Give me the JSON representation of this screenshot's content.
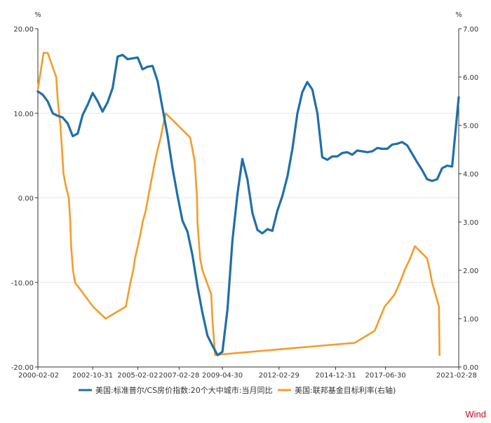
{
  "chart_data": {
    "type": "line",
    "title": "",
    "left_unit": "%",
    "right_unit": "%",
    "ylim_left": [
      -20,
      20
    ],
    "ylim_right": [
      0,
      7
    ],
    "yticks_left": [
      "20.00",
      "10.00",
      "0.00",
      "-10.00",
      "-20.00"
    ],
    "yticks_right": [
      "7.00",
      "6.00",
      "5.00",
      "4.00",
      "3.00",
      "2.00",
      "1.00",
      "0.00"
    ],
    "xlim": [
      "2000-02-02",
      "2021-02-28"
    ],
    "xticks": [
      "2000-02-02",
      "2002-10-31",
      "2005-02-02",
      "2007-02-28",
      "2009-04-30",
      "2012-02-29",
      "2014-12-31",
      "2017-06-30",
      "2021-02-28"
    ],
    "grid": true,
    "legend_position": "bottom",
    "brand": "Wind",
    "series": [
      {
        "name": "美国:标准普尔/CS房价指数:20个大中城市:当月同比",
        "axis": "left",
        "color": "#1f6fa8",
        "x": [
          "2000-01-31",
          "2000-04-30",
          "2000-07-31",
          "2000-10-31",
          "2001-01-31",
          "2001-04-30",
          "2001-07-31",
          "2001-10-31",
          "2002-01-31",
          "2002-04-30",
          "2002-07-31",
          "2002-10-31",
          "2003-01-31",
          "2003-04-30",
          "2003-07-31",
          "2003-10-31",
          "2004-01-31",
          "2004-04-30",
          "2004-07-31",
          "2004-10-31",
          "2005-01-31",
          "2005-04-30",
          "2005-07-31",
          "2005-10-31",
          "2006-01-31",
          "2006-04-30",
          "2006-07-31",
          "2006-10-31",
          "2007-01-31",
          "2007-04-30",
          "2007-07-31",
          "2007-10-31",
          "2008-01-31",
          "2008-04-30",
          "2008-07-31",
          "2008-10-31",
          "2009-01-31",
          "2009-04-30",
          "2009-07-31",
          "2009-10-31",
          "2010-01-31",
          "2010-04-30",
          "2010-07-31",
          "2010-10-31",
          "2011-01-31",
          "2011-04-30",
          "2011-07-31",
          "2011-10-31",
          "2012-01-31",
          "2012-04-30",
          "2012-07-31",
          "2012-10-31",
          "2013-01-31",
          "2013-04-30",
          "2013-07-31",
          "2013-10-31",
          "2014-01-31",
          "2014-04-30",
          "2014-07-31",
          "2014-10-31",
          "2015-01-31",
          "2015-04-30",
          "2015-07-31",
          "2015-10-31",
          "2016-01-31",
          "2016-04-30",
          "2016-07-31",
          "2016-10-31",
          "2017-01-31",
          "2017-04-30",
          "2017-07-31",
          "2017-10-31",
          "2018-01-31",
          "2018-04-30",
          "2018-07-31",
          "2018-10-31",
          "2019-01-31",
          "2019-04-30",
          "2019-07-31",
          "2019-10-31",
          "2020-01-31",
          "2020-04-30",
          "2020-07-31",
          "2020-10-31",
          "2021-01-31",
          "2021-02-28"
        ],
        "values": [
          12.6,
          12.2,
          11.4,
          10.0,
          9.7,
          9.5,
          8.8,
          7.3,
          7.6,
          9.8,
          11.0,
          12.4,
          11.4,
          10.2,
          11.3,
          13.0,
          16.7,
          16.9,
          16.4,
          16.5,
          16.6,
          15.2,
          15.5,
          15.6,
          13.8,
          10.6,
          7.4,
          3.5,
          0.2,
          -2.7,
          -4.0,
          -6.8,
          -10.5,
          -13.6,
          -16.3,
          -17.5,
          -18.6,
          -18.2,
          -13.2,
          -5.0,
          0.5,
          4.6,
          2.2,
          -1.8,
          -3.8,
          -4.2,
          -3.7,
          -3.9,
          -1.5,
          0.2,
          2.5,
          5.8,
          10.0,
          12.5,
          13.7,
          12.8,
          10.0,
          4.8,
          4.5,
          4.9,
          4.9,
          5.3,
          5.4,
          5.1,
          5.6,
          5.5,
          5.4,
          5.5,
          5.9,
          5.8,
          5.8,
          6.3,
          6.4,
          6.6,
          6.2,
          5.2,
          4.2,
          3.3,
          2.2,
          2.0,
          2.2,
          3.5,
          3.8,
          3.7,
          10.0,
          11.9
        ]
      },
      {
        "name": "美国:联邦基金目标利率(右轴)",
        "axis": "right",
        "color": "#f39c2b",
        "x": [
          "2000-02-02",
          "2000-05-16",
          "2000-07-31",
          "2001-01-03",
          "2001-01-31",
          "2001-03-20",
          "2001-04-18",
          "2001-05-15",
          "2001-06-27",
          "2001-08-21",
          "2001-09-17",
          "2001-10-02",
          "2001-11-06",
          "2001-12-11",
          "2002-11-06",
          "2003-06-25",
          "2004-06-30",
          "2004-08-10",
          "2004-09-21",
          "2004-11-10",
          "2004-12-14",
          "2005-02-02",
          "2005-03-22",
          "2005-05-03",
          "2005-06-30",
          "2005-08-09",
          "2005-09-20",
          "2005-11-01",
          "2005-12-13",
          "2006-01-31",
          "2006-03-28",
          "2006-05-10",
          "2006-06-29",
          "2007-09-18",
          "2007-10-31",
          "2007-12-11",
          "2008-01-22",
          "2008-01-30",
          "2008-03-18",
          "2008-04-30",
          "2008-10-08",
          "2008-10-29",
          "2008-12-16",
          "2015-12-16",
          "2016-12-14",
          "2017-03-15",
          "2017-06-14",
          "2017-12-13",
          "2018-03-21",
          "2018-06-13",
          "2018-09-26",
          "2018-12-19",
          "2019-07-31",
          "2019-09-18",
          "2019-10-30",
          "2020-03-03",
          "2020-03-15"
        ],
        "values": [
          5.75,
          6.5,
          6.5,
          6.0,
          5.5,
          5.0,
          4.5,
          4.0,
          3.75,
          3.5,
          3.0,
          2.5,
          2.0,
          1.75,
          1.25,
          1.0,
          1.25,
          1.5,
          1.75,
          2.0,
          2.25,
          2.5,
          2.75,
          3.0,
          3.25,
          3.5,
          3.75,
          4.0,
          4.25,
          4.5,
          4.75,
          5.0,
          5.25,
          4.75,
          4.5,
          4.25,
          3.5,
          3.0,
          2.25,
          2.0,
          1.5,
          1.0,
          0.25,
          0.5,
          0.75,
          1.0,
          1.25,
          1.5,
          1.75,
          2.0,
          2.25,
          2.5,
          2.25,
          2.0,
          1.75,
          1.25,
          0.25
        ]
      }
    ]
  }
}
